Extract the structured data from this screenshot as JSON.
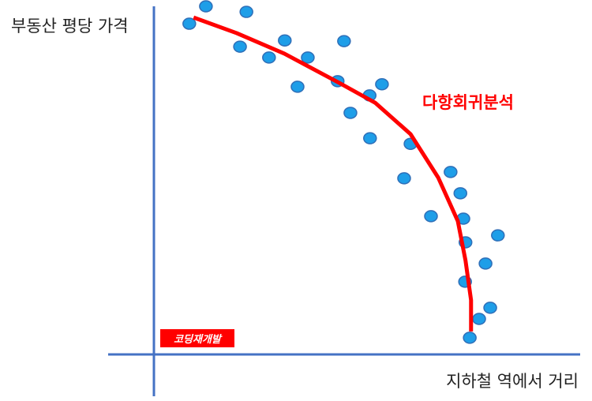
{
  "chart_data": {
    "type": "scatter",
    "xlabel": "지하철 역에서 거리",
    "ylabel": "부동산 평당 가격",
    "xlim": [
      0,
      100
    ],
    "ylim": [
      0,
      100
    ],
    "points": {
      "color": "#1e9ee8",
      "x": [
        8.3,
        12.2,
        21.7,
        20.2,
        27.0,
        30.7,
        36.1,
        33.7,
        43.1,
        44.6,
        50.6,
        53.5,
        46.1,
        50.7,
        60.2,
        58.7,
        69.6,
        71.9,
        65.0,
        72.6,
        80.7,
        73.1,
        77.8,
        73.0,
        78.9,
        76.3,
        74.1
      ],
      "y": [
        95.0,
        100.0,
        98.4,
        88.4,
        85.3,
        90.2,
        85.3,
        76.9,
        78.5,
        90.0,
        74.4,
        77.6,
        69.4,
        62.1,
        60.5,
        50.6,
        52.4,
        46.3,
        39.7,
        39.0,
        34.2,
        32.2,
        26.1,
        20.9,
        13.4,
        10.2,
        4.8
      ]
    },
    "fit": {
      "label": "다항회귀분석",
      "color": "#ff0000",
      "x": [
        9.3,
        19.4,
        30.6,
        43.5,
        51.9,
        60.2,
        66.7,
        71.3,
        73.1,
        74.4,
        74.4
      ],
      "y": [
        96.8,
        92.3,
        86.4,
        78.0,
        72.3,
        63.3,
        50.8,
        38.3,
        27.0,
        15.6,
        6.6
      ]
    },
    "badge": "코딩재개발"
  }
}
